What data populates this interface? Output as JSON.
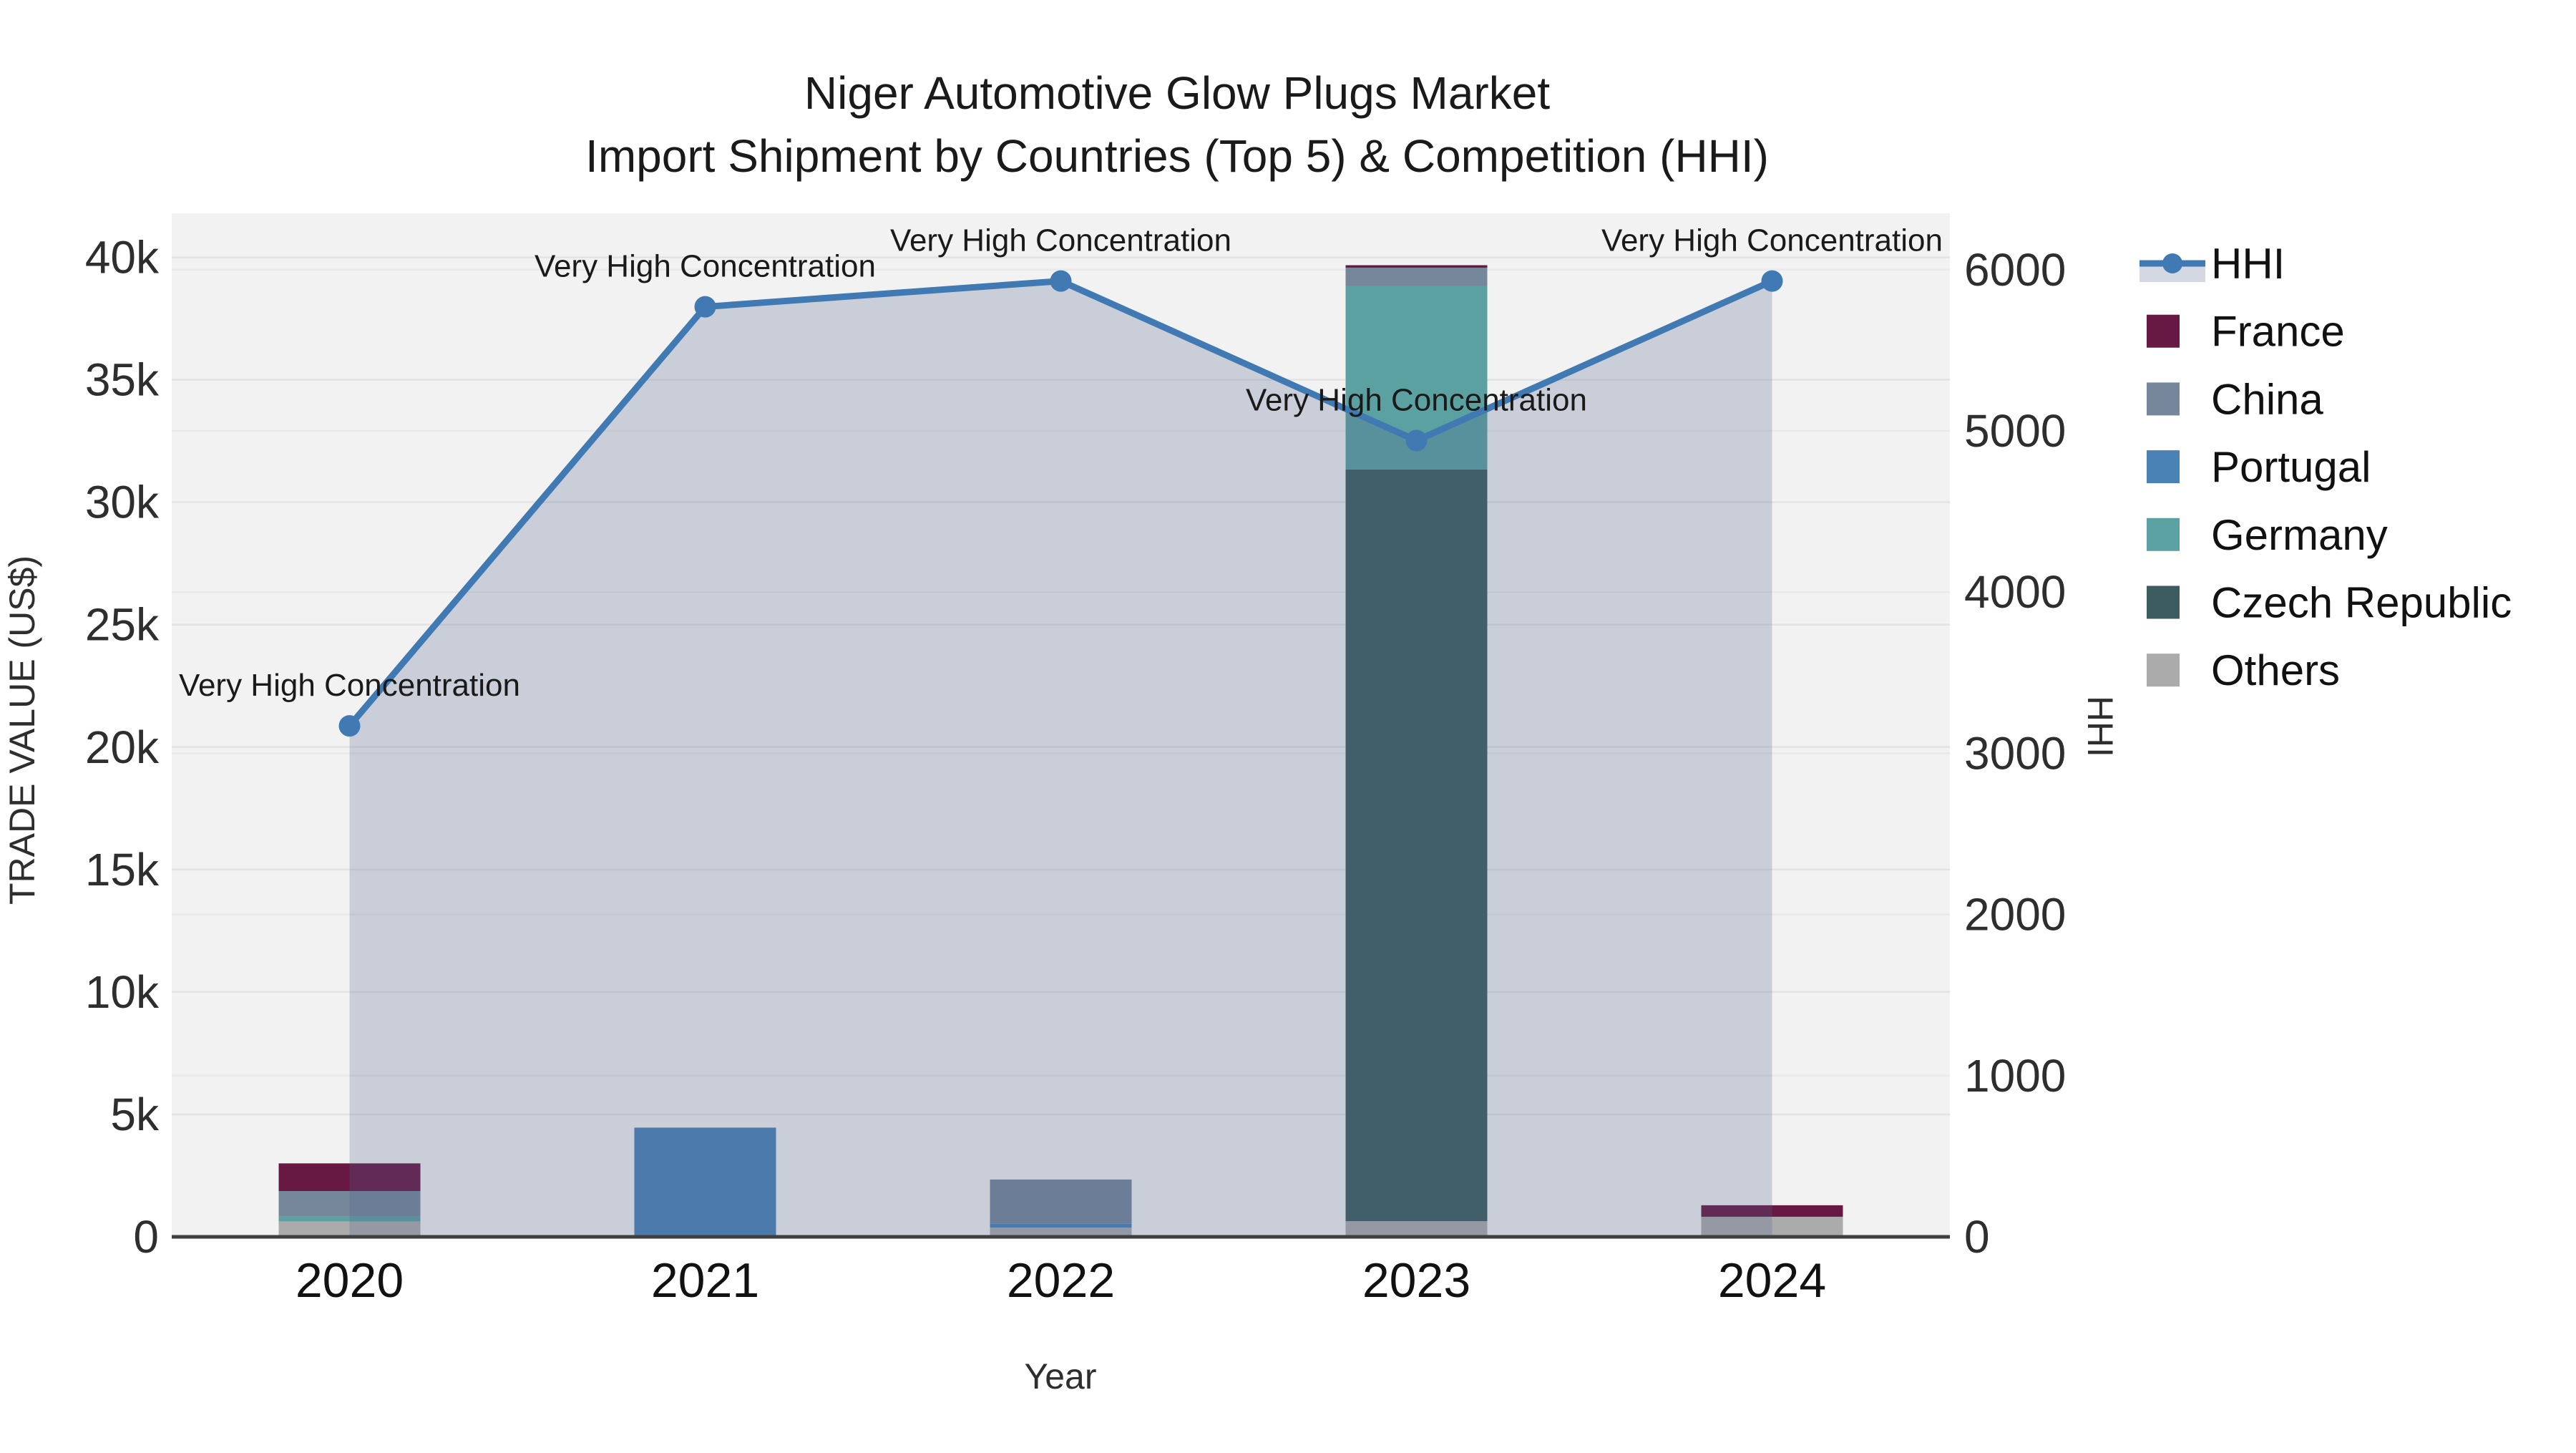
{
  "title": {
    "line1": "Niger Automotive Glow Plugs Market",
    "line2": "Import Shipment by Countries (Top 5) & Competition (HHI)"
  },
  "axes": {
    "x_title": "Year",
    "y_left_title": "TRADE VALUE (US$)",
    "y_right_title": "HHI"
  },
  "chart_data": {
    "type": "combo_stacked_bar_line",
    "title": "Niger Automotive Glow Plugs Market — Import Shipment by Countries (Top 5) & Competition (HHI)",
    "categories": [
      "2020",
      "2021",
      "2022",
      "2023",
      "2024"
    ],
    "bar_unit": "US$ (trade value, left axis)",
    "series": [
      {
        "name": "Others",
        "color": "#ABABAB",
        "values": [
          630,
          0,
          380,
          640,
          820
        ]
      },
      {
        "name": "Czech Republic",
        "color": "#3D5C60",
        "values": [
          0,
          0,
          0,
          30700,
          0
        ]
      },
      {
        "name": "Germany",
        "color": "#5BA1A1",
        "values": [
          200,
          0,
          0,
          7480,
          0
        ]
      },
      {
        "name": "Portugal",
        "color": "#4B82B5",
        "values": [
          0,
          4460,
          150,
          0,
          0
        ]
      },
      {
        "name": "China",
        "color": "#76879B",
        "values": [
          1040,
          0,
          1810,
          760,
          0
        ]
      },
      {
        "name": "France",
        "color": "#671843",
        "values": [
          1130,
          0,
          0,
          100,
          470
        ]
      }
    ],
    "line": {
      "name": "HHI",
      "color": "#4179B3",
      "area_fill": "rgba(80,98,138,0.25)",
      "values": [
        3170,
        5770,
        5930,
        4940,
        5930
      ]
    },
    "point_annotation_text": "Very High Concentration",
    "xlabel": "Year",
    "ylabel_left": "TRADE VALUE (US$)",
    "ylabel_right": "HHI",
    "ylim_left": [
      0,
      41800
    ],
    "ylim_right": [
      0,
      6350
    ],
    "y_left_ticks": [
      {
        "label": "0",
        "value": 0
      },
      {
        "label": "5k",
        "value": 5000
      },
      {
        "label": "10k",
        "value": 10000
      },
      {
        "label": "15k",
        "value": 15000
      },
      {
        "label": "20k",
        "value": 20000
      },
      {
        "label": "25k",
        "value": 25000
      },
      {
        "label": "30k",
        "value": 30000
      },
      {
        "label": "35k",
        "value": 35000
      },
      {
        "label": "40k",
        "value": 40000
      }
    ],
    "y_right_ticks": [
      {
        "label": "0",
        "value": 0
      },
      {
        "label": "1000",
        "value": 1000
      },
      {
        "label": "2000",
        "value": 2000
      },
      {
        "label": "3000",
        "value": 3000
      },
      {
        "label": "4000",
        "value": 4000
      },
      {
        "label": "5000",
        "value": 5000
      },
      {
        "label": "6000",
        "value": 6000
      }
    ],
    "grid": true,
    "legend_position": "right",
    "legend_order": [
      "HHI",
      "France",
      "China",
      "Portugal",
      "Germany",
      "Czech Republic",
      "Others"
    ],
    "plot_background": "#F2F2F2",
    "gridline_color_left": "#E3E3E3",
    "gridline_color_right": "#E9E9E9",
    "axis_line_color": "#3F3F3F"
  }
}
